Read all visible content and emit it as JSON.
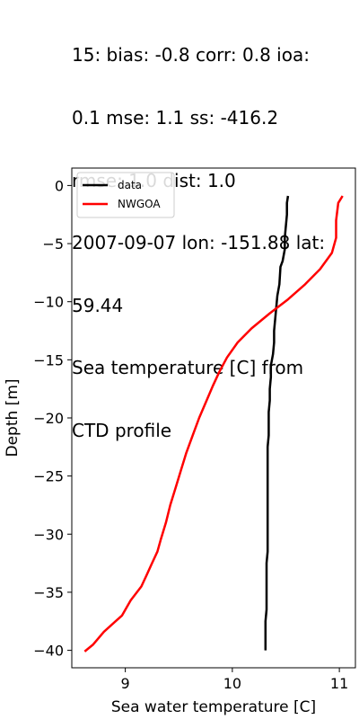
{
  "title_lines": [
    "15: bias: -0.8  corr: 0.8  ioa:",
    "0.1  mse: 1.1  ss: -416.2",
    "rmse: 1.0  dist: 1.0",
    "2007-09-07 lon: -151.88 lat:",
    "59.44",
    "Sea temperature [C] from",
    "CTD profile"
  ],
  "chart_data": {
    "type": "line",
    "xlabel": "Sea water temperature [C]",
    "ylabel": "Depth [m]",
    "xlim": [
      8.5,
      11.15
    ],
    "ylim": [
      -41.5,
      1.5
    ],
    "xticks": [
      9,
      10,
      11
    ],
    "yticks": [
      0,
      -5,
      -10,
      -15,
      -20,
      -25,
      -30,
      -35,
      -40
    ],
    "grid": false,
    "legend_position": "top-left",
    "series": [
      {
        "name": "data",
        "color": "#000000",
        "points": [
          [
            10.52,
            -0.9
          ],
          [
            10.51,
            -1.5
          ],
          [
            10.51,
            -2.5
          ],
          [
            10.5,
            -3.5
          ],
          [
            10.49,
            -4.5
          ],
          [
            10.49,
            -5.5
          ],
          [
            10.47,
            -6.5
          ],
          [
            10.45,
            -7.0
          ],
          [
            10.44,
            -8.5
          ],
          [
            10.42,
            -9.5
          ],
          [
            10.41,
            -10.5
          ],
          [
            10.4,
            -11.5
          ],
          [
            10.39,
            -12.5
          ],
          [
            10.39,
            -13.5
          ],
          [
            10.38,
            -14.5
          ],
          [
            10.36,
            -15.5
          ],
          [
            10.36,
            -16.5
          ],
          [
            10.35,
            -17.5
          ],
          [
            10.35,
            -18.5
          ],
          [
            10.34,
            -19.5
          ],
          [
            10.34,
            -20.5
          ],
          [
            10.34,
            -21.5
          ],
          [
            10.33,
            -22.5
          ],
          [
            10.33,
            -23.5
          ],
          [
            10.33,
            -24.5
          ],
          [
            10.33,
            -25.5
          ],
          [
            10.33,
            -26.5
          ],
          [
            10.33,
            -27.5
          ],
          [
            10.33,
            -28.5
          ],
          [
            10.33,
            -29.5
          ],
          [
            10.33,
            -30.5
          ],
          [
            10.33,
            -31.5
          ],
          [
            10.32,
            -32.5
          ],
          [
            10.32,
            -33.5
          ],
          [
            10.32,
            -34.5
          ],
          [
            10.32,
            -35.5
          ],
          [
            10.32,
            -36.5
          ],
          [
            10.31,
            -37.5
          ],
          [
            10.31,
            -38.5
          ],
          [
            10.31,
            -39.5
          ],
          [
            10.31,
            -40.0
          ]
        ]
      },
      {
        "name": "NWGOA",
        "color": "#ff0000",
        "points": [
          [
            11.03,
            -0.9
          ],
          [
            10.99,
            -1.5
          ],
          [
            10.97,
            -3.0
          ],
          [
            10.97,
            -4.5
          ],
          [
            10.93,
            -5.8
          ],
          [
            10.82,
            -7.2
          ],
          [
            10.68,
            -8.5
          ],
          [
            10.52,
            -9.8
          ],
          [
            10.35,
            -11.0
          ],
          [
            10.18,
            -12.3
          ],
          [
            10.05,
            -13.5
          ],
          [
            9.95,
            -14.8
          ],
          [
            9.88,
            -16.0
          ],
          [
            9.82,
            -17.2
          ],
          [
            9.76,
            -18.5
          ],
          [
            9.69,
            -20.0
          ],
          [
            9.63,
            -21.5
          ],
          [
            9.57,
            -23.0
          ],
          [
            9.52,
            -24.5
          ],
          [
            9.47,
            -26.0
          ],
          [
            9.42,
            -27.5
          ],
          [
            9.38,
            -29.0
          ],
          [
            9.33,
            -30.5
          ],
          [
            9.3,
            -31.5
          ],
          [
            9.25,
            -32.5
          ],
          [
            9.2,
            -33.5
          ],
          [
            9.15,
            -34.5
          ],
          [
            9.05,
            -35.7
          ],
          [
            8.97,
            -37.0
          ],
          [
            8.8,
            -38.4
          ],
          [
            8.7,
            -39.5
          ],
          [
            8.62,
            -40.1
          ]
        ]
      }
    ]
  }
}
